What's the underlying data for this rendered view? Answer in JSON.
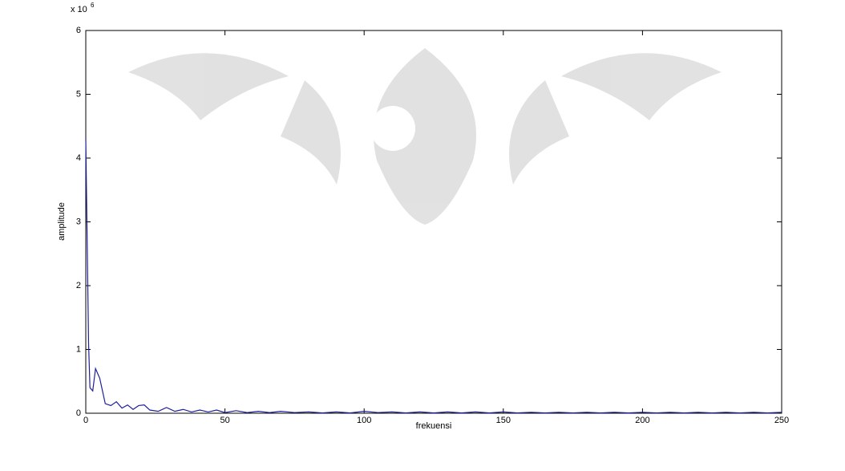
{
  "chart_data": {
    "type": "line",
    "x_label": "frekuensi",
    "y_label": "amplitude",
    "y_multiplier": {
      "base": "x 10",
      "exponent": "6"
    },
    "color": "#1f1f9a",
    "xlim": [
      0,
      250
    ],
    "ylim": [
      0,
      6
    ],
    "xticks": [
      0,
      50,
      100,
      150,
      200,
      250
    ],
    "yticks": [
      0,
      1,
      2,
      3,
      4,
      5,
      6
    ],
    "grid": false,
    "x": [
      0,
      0.5,
      1,
      1.5,
      2.5,
      3.5,
      5,
      7,
      9,
      11,
      13,
      15,
      17,
      19,
      21,
      23,
      26,
      29,
      32,
      35,
      38,
      41,
      44,
      47,
      50,
      54,
      58,
      62,
      66,
      70,
      75,
      80,
      85,
      90,
      95,
      100,
      105,
      110,
      115,
      120,
      125,
      130,
      135,
      140,
      145,
      150,
      155,
      160,
      165,
      170,
      175,
      180,
      185,
      190,
      195,
      200,
      205,
      210,
      215,
      220,
      225,
      230,
      235,
      240,
      245,
      250
    ],
    "values": [
      4.3,
      2.7,
      1.1,
      0.4,
      0.35,
      0.7,
      0.55,
      0.15,
      0.12,
      0.18,
      0.08,
      0.13,
      0.06,
      0.12,
      0.13,
      0.05,
      0.03,
      0.09,
      0.03,
      0.06,
      0.02,
      0.05,
      0.02,
      0.05,
      0.01,
      0.04,
      0.01,
      0.03,
      0.01,
      0.03,
      0.01,
      0.02,
      0.005,
      0.02,
      0.005,
      0.03,
      0.01,
      0.02,
      0.005,
      0.02,
      0.005,
      0.02,
      0.005,
      0.02,
      0.005,
      0.02,
      0.005,
      0.015,
      0.005,
      0.015,
      0.005,
      0.015,
      0.005,
      0.015,
      0.005,
      0.015,
      0.005,
      0.015,
      0.005,
      0.015,
      0.005,
      0.015,
      0.005,
      0.015,
      0.005,
      0.015
    ]
  }
}
